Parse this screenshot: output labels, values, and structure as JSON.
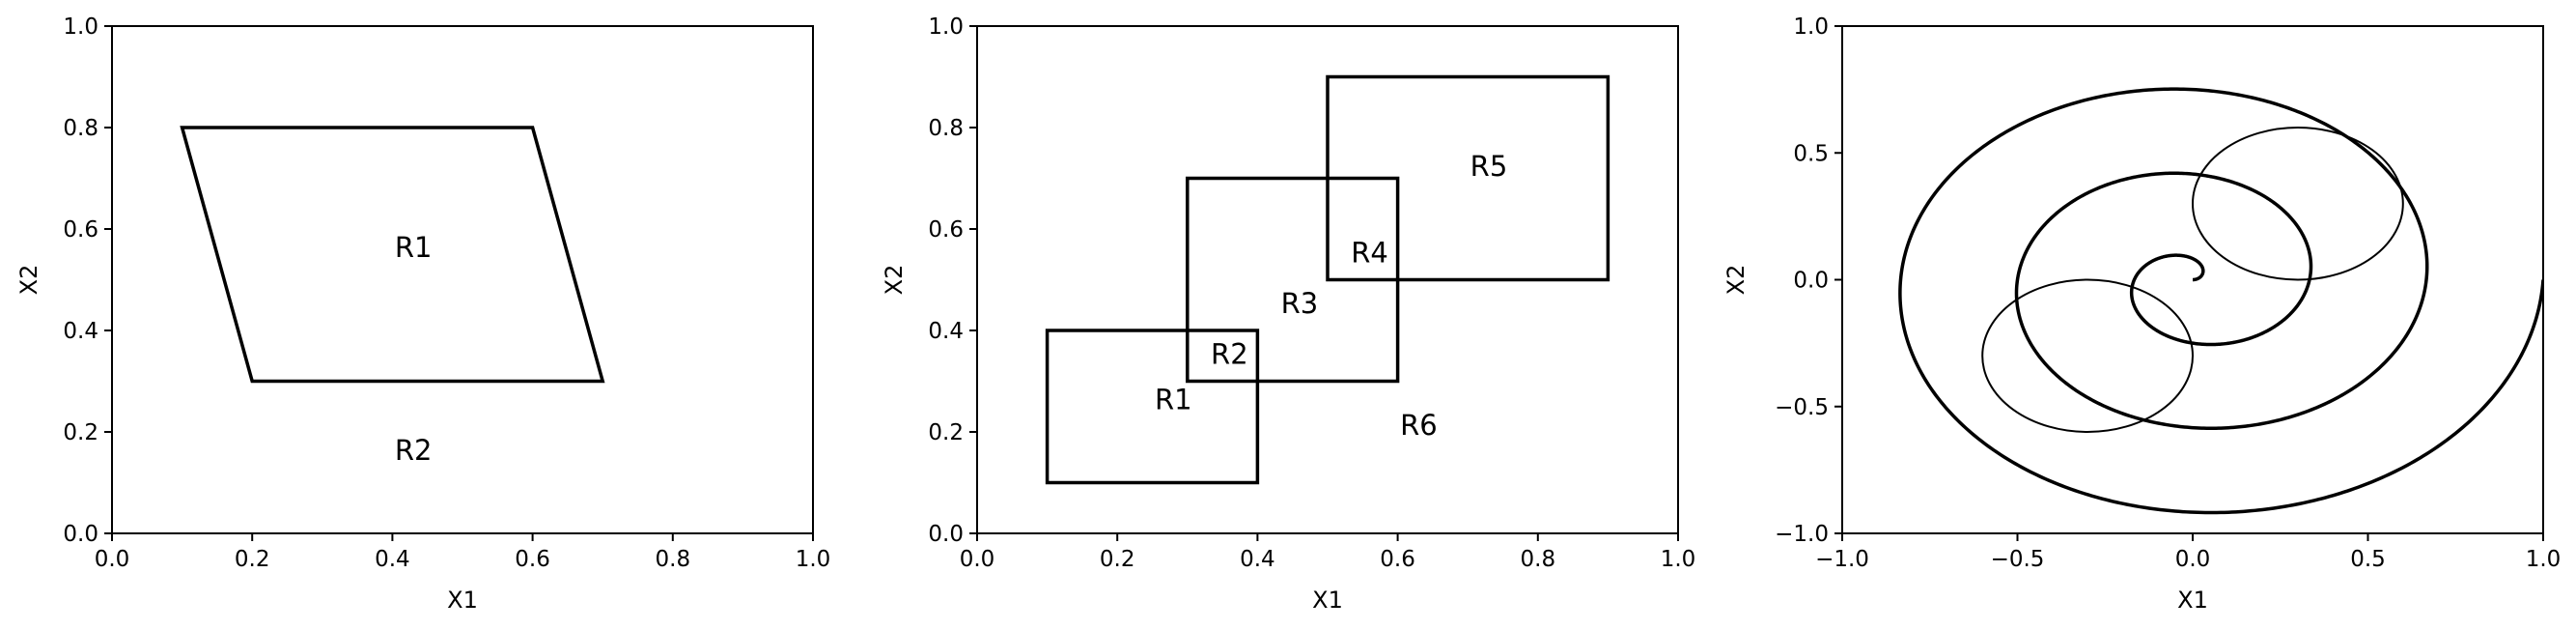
{
  "chart_data": [
    {
      "type": "diagram",
      "title": "",
      "xlabel": "X1",
      "ylabel": "X2",
      "xlim": [
        0,
        1
      ],
      "ylim": [
        0,
        1
      ],
      "xticks": [
        0.0,
        0.2,
        0.4,
        0.6,
        0.8,
        1.0
      ],
      "yticks": [
        0.0,
        0.2,
        0.4,
        0.6,
        0.8,
        1.0
      ],
      "xtick_labels": [
        "0.0",
        "0.2",
        "0.4",
        "0.6",
        "0.8",
        "1.0"
      ],
      "ytick_labels": [
        "0.0",
        "0.2",
        "0.4",
        "0.6",
        "0.8",
        "1.0"
      ],
      "polygons": [
        {
          "points": [
            [
              0.1,
              0.8
            ],
            [
              0.6,
              0.8
            ],
            [
              0.7,
              0.3
            ],
            [
              0.2,
              0.3
            ]
          ]
        }
      ],
      "labels": [
        {
          "text": "R1",
          "x": 0.43,
          "y": 0.56
        },
        {
          "text": "R2",
          "x": 0.43,
          "y": 0.16
        }
      ]
    },
    {
      "type": "diagram",
      "title": "",
      "xlabel": "X1",
      "ylabel": "X2",
      "xlim": [
        0,
        1
      ],
      "ylim": [
        0,
        1
      ],
      "xticks": [
        0.0,
        0.2,
        0.4,
        0.6,
        0.8,
        1.0
      ],
      "yticks": [
        0.0,
        0.2,
        0.4,
        0.6,
        0.8,
        1.0
      ],
      "xtick_labels": [
        "0.0",
        "0.2",
        "0.4",
        "0.6",
        "0.8",
        "1.0"
      ],
      "ytick_labels": [
        "0.0",
        "0.2",
        "0.4",
        "0.6",
        "0.8",
        "1.0"
      ],
      "rectangles": [
        {
          "x0": 0.1,
          "x1": 0.4,
          "y0": 0.1,
          "y1": 0.4
        },
        {
          "x0": 0.3,
          "x1": 0.6,
          "y0": 0.3,
          "y1": 0.7
        },
        {
          "x0": 0.5,
          "x1": 0.9,
          "y0": 0.5,
          "y1": 0.9
        }
      ],
      "labels": [
        {
          "text": "R1",
          "x": 0.28,
          "y": 0.26
        },
        {
          "text": "R2",
          "x": 0.36,
          "y": 0.35
        },
        {
          "text": "R3",
          "x": 0.46,
          "y": 0.45
        },
        {
          "text": "R4",
          "x": 0.56,
          "y": 0.55
        },
        {
          "text": "R5",
          "x": 0.73,
          "y": 0.72
        },
        {
          "text": "R6",
          "x": 0.63,
          "y": 0.21
        }
      ]
    },
    {
      "type": "diagram",
      "title": "",
      "xlabel": "X1",
      "ylabel": "X2",
      "xlim": [
        -1,
        1
      ],
      "ylim": [
        -1,
        1
      ],
      "xticks": [
        -1.0,
        -0.5,
        0.0,
        0.5,
        1.0
      ],
      "yticks": [
        -1.0,
        -0.5,
        0.0,
        0.5,
        1.0
      ],
      "xtick_labels": [
        "−1.0",
        "−0.5",
        "0.0",
        "0.5",
        "1.0"
      ],
      "ytick_labels": [
        "−1.0",
        "−0.5",
        "0.0",
        "0.5",
        "1.0"
      ],
      "spiral": {
        "center": [
          0.0,
          0.0
        ],
        "max_radius": 1.0,
        "turns": 3.0,
        "start_radius": 0.0
      },
      "circles": [
        {
          "cx": 0.3,
          "cy": 0.3,
          "r": 0.3
        },
        {
          "cx": -0.3,
          "cy": -0.3,
          "r": 0.3
        }
      ],
      "labels": []
    }
  ]
}
